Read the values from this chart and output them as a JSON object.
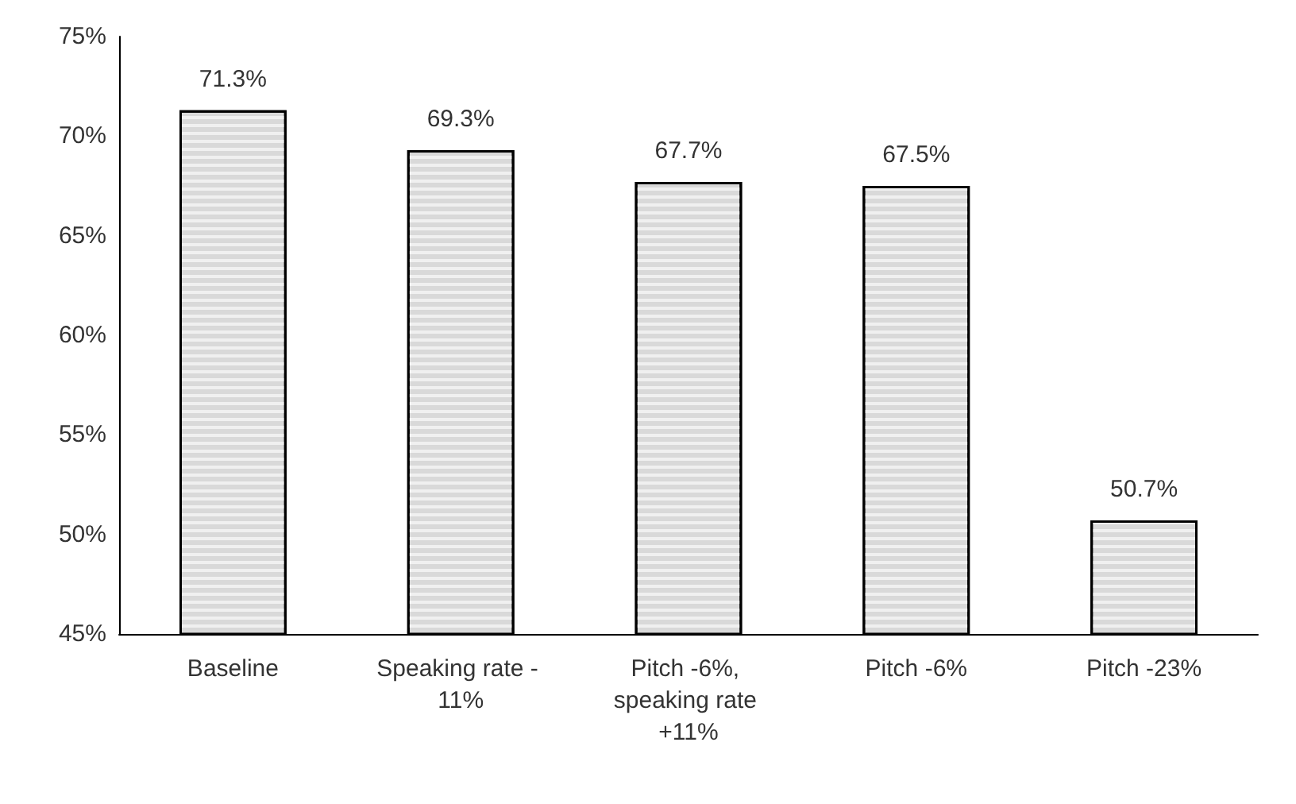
{
  "chart_data": {
    "type": "bar",
    "categories": [
      "Baseline",
      "Speaking rate - 11%",
      "Pitch -6%, speaking rate +11%",
      "Pitch -6%",
      "Pitch -23%"
    ],
    "values": [
      71.3,
      69.3,
      67.7,
      67.5,
      50.7
    ],
    "value_labels": [
      "71.3%",
      "69.3%",
      "67.7%",
      "67.5%",
      "50.7%"
    ],
    "color": "#d9d9d9",
    "ylim": [
      45,
      75
    ],
    "yticks": [
      {
        "value": 45,
        "label": "45%"
      },
      {
        "value": 50,
        "label": "50%"
      },
      {
        "value": 55,
        "label": "55%"
      },
      {
        "value": 60,
        "label": "60%"
      },
      {
        "value": 65,
        "label": "65%"
      },
      {
        "value": 70,
        "label": "70%"
      },
      {
        "value": 75,
        "label": "75%"
      }
    ],
    "grid": false
  }
}
